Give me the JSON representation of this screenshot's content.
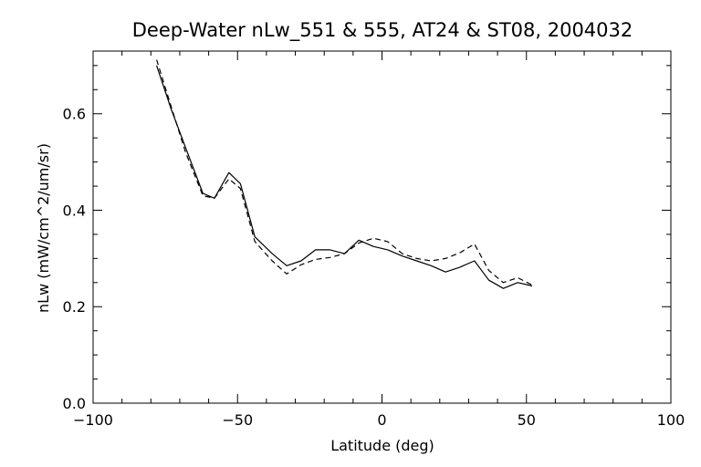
{
  "chart_data": {
    "type": "line",
    "title": "Deep-Water nLw_551 & 555, AT24 & ST08, 2004032",
    "xlabel": "Latitude (deg)",
    "ylabel": "nLw (mW/cm^2/um/sr)",
    "xlim": [
      -100,
      100
    ],
    "ylim": [
      0.0,
      0.73
    ],
    "xticks": [
      -100,
      -50,
      0,
      50,
      100
    ],
    "xtick_labels": [
      "−100",
      "−50",
      "0",
      "50",
      "100"
    ],
    "yticks": [
      0.0,
      0.2,
      0.4,
      0.6
    ],
    "ytick_labels": [
      "0.0",
      "0.2",
      "0.4",
      "0.6"
    ],
    "grid": false,
    "series": [
      {
        "style": "solid",
        "color": "#000000",
        "x": [
          -78,
          -73,
          -68,
          -62,
          -58,
          -53,
          -49,
          -44,
          -38,
          -33,
          -28,
          -23,
          -18,
          -13,
          -8,
          -3,
          2,
          7,
          12,
          17,
          22,
          27,
          32,
          37,
          42,
          47,
          52
        ],
        "y": [
          0.7,
          0.61,
          0.53,
          0.435,
          0.425,
          0.478,
          0.455,
          0.345,
          0.31,
          0.285,
          0.295,
          0.318,
          0.318,
          0.31,
          0.338,
          0.325,
          0.318,
          0.305,
          0.295,
          0.285,
          0.272,
          0.282,
          0.295,
          0.255,
          0.238,
          0.25,
          0.243
        ]
      },
      {
        "style": "dashed",
        "color": "#000000",
        "x": [
          -78,
          -73,
          -68,
          -62,
          -58,
          -53,
          -49,
          -44,
          -38,
          -33,
          -28,
          -23,
          -18,
          -13,
          -8,
          -3,
          2,
          7,
          12,
          17,
          22,
          27,
          32,
          37,
          42,
          47,
          52
        ],
        "y": [
          0.712,
          0.615,
          0.52,
          0.43,
          0.425,
          0.465,
          0.445,
          0.335,
          0.295,
          0.268,
          0.287,
          0.298,
          0.302,
          0.31,
          0.332,
          0.342,
          0.335,
          0.31,
          0.3,
          0.295,
          0.3,
          0.312,
          0.33,
          0.275,
          0.25,
          0.26,
          0.245
        ]
      }
    ]
  }
}
